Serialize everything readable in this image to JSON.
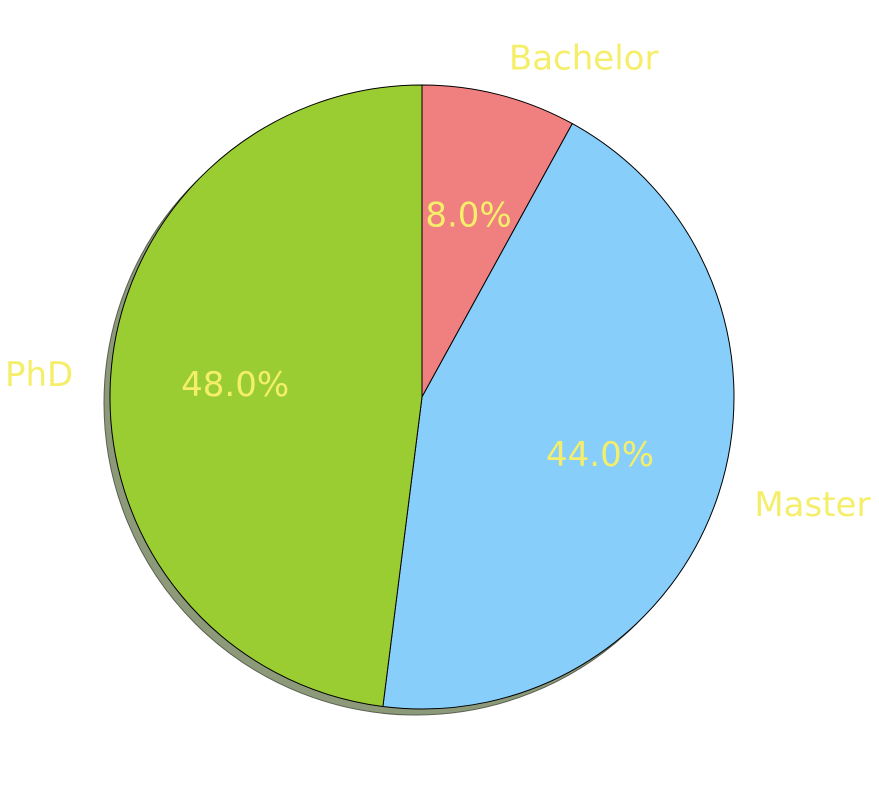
{
  "chart_data": {
    "type": "pie",
    "categories": [
      "Bachelor",
      "Master",
      "PhD"
    ],
    "values": [
      8.0,
      44.0,
      48.0
    ],
    "percent_labels": [
      "8.0%",
      "44.0%",
      "48.0%"
    ],
    "colors": [
      "#f08080",
      "#87cefa",
      "#9acd32"
    ],
    "text_color": "#f5ee6a",
    "shadow": true,
    "start_angle_deg": 90,
    "direction": "clockwise",
    "title": ""
  }
}
